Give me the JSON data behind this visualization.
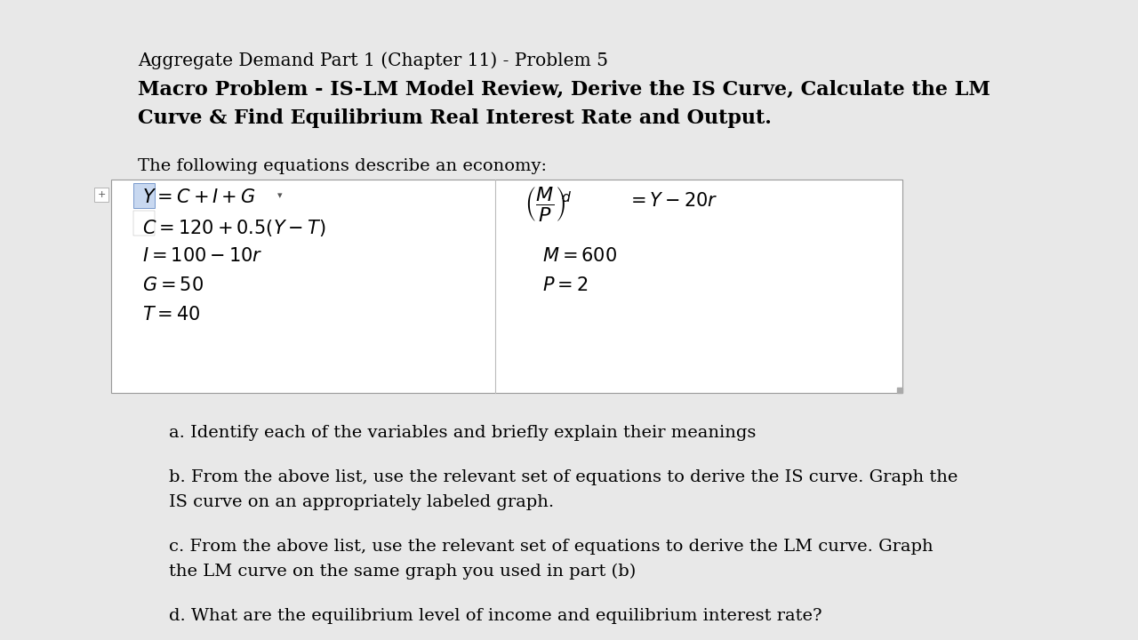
{
  "bg_color": "#e0e0e0",
  "page_bg": "#e8e8e8",
  "content_bg": "#f0f0f0",
  "white": "#ffffff",
  "title1": "Aggregate Demand Part 1 (Chapter 11) - Problem 5",
  "title2": "Macro Problem - IS-LM Model Review, Derive the IS Curve, Calculate the LM",
  "title3": "Curve & Find Equilibrium Real Interest Rate and Output.",
  "subtitle": "The following equations describe an economy:",
  "qa": "a. Identify each of the variables and briefly explain their meanings",
  "qb1": "b. From the above list, use the relevant set of equations to derive the IS curve. Graph the",
  "qb2": "IS curve on an appropriately labeled graph.",
  "qc1": "c. From the above list, use the relevant set of equations to derive the LM curve. Graph",
  "qc2": "the LM curve on the same graph you used in part (b)",
  "qd": "d. What are the equilibrium level of income and equilibrium interest rate?"
}
